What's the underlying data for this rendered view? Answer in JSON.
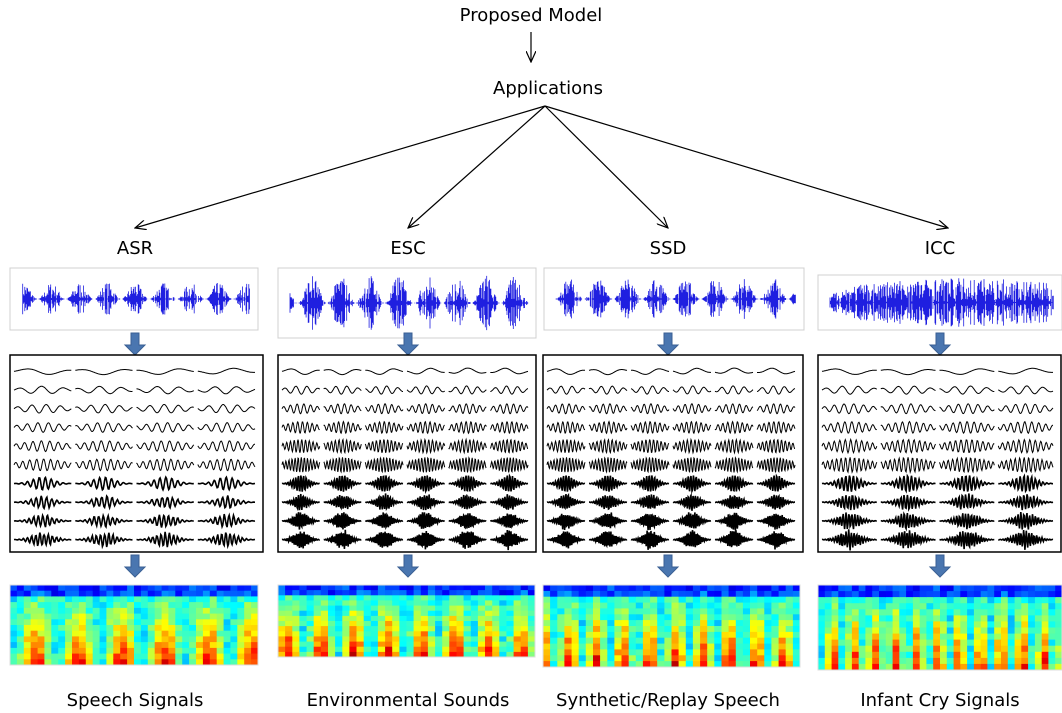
{
  "title": "Proposed Model",
  "subtitle": "Applications",
  "columns": [
    {
      "label": "ASR",
      "caption": "Speech Signals"
    },
    {
      "label": "ESC",
      "caption": "Environmental Sounds"
    },
    {
      "label": "SSD",
      "caption": "Synthetic/Replay Speech"
    },
    {
      "label": "ICC",
      "caption": "Infant Cry Signals"
    }
  ]
}
